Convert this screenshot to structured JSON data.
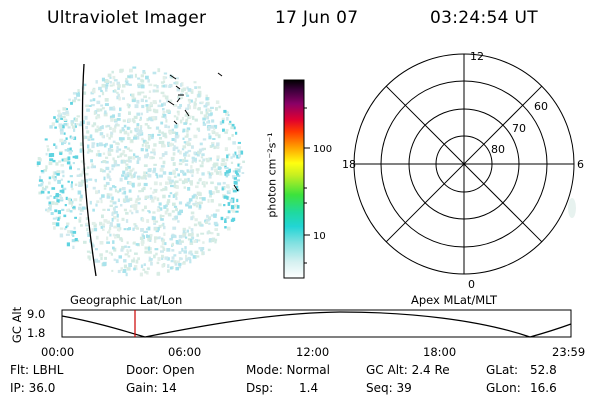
{
  "header": {
    "instrument": "Ultraviolet Imager",
    "date": "17 Jun 07",
    "time": "03:24:54 UT"
  },
  "colorbar": {
    "unit_label": "photon cm⁻²s⁻¹",
    "ticks": [
      "100",
      "10"
    ]
  },
  "polar_grid": {
    "mlt_labels": [
      "12",
      "18",
      "6",
      "0"
    ],
    "mlat_labels": [
      "60",
      "70",
      "80"
    ]
  },
  "timeline": {
    "y_axis_label": "GC Alt",
    "y_ticks": [
      "9.0",
      "1.8"
    ],
    "left_caption": "Geographic Lat/Lon",
    "right_caption": "Apex  MLat/MLT",
    "x_ticks": [
      "00:00",
      "06:00",
      "12:00",
      "18:00",
      "23:59"
    ],
    "marker_color": "#cc0000"
  },
  "status": {
    "filter": "Flt: LBHL",
    "door": "Door: Open",
    "mode": "Mode: Normal",
    "gc_alt": "GC Alt: 2.4 Re",
    "glat_key": "GLat:",
    "glat_val": "52.8",
    "ip": "IP: 36.0",
    "gain": "Gain: 14",
    "dsp_key": "Dsp:",
    "dsp_val": "1.4",
    "seq": "Seq: 39",
    "glon_key": "GLon:",
    "glon_val": "16.6"
  }
}
